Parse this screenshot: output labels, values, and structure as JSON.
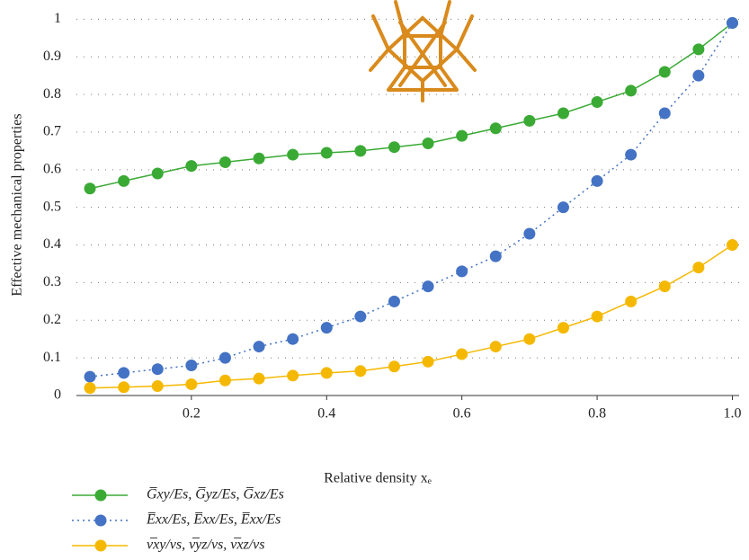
{
  "chart_data": {
    "type": "line",
    "x_label": "Relative density xₑ",
    "y_label": "Effective mechanical properties",
    "x": [
      0.05,
      0.1,
      0.15,
      0.2,
      0.25,
      0.3,
      0.35,
      0.4,
      0.45,
      0.5,
      0.55,
      0.6,
      0.65,
      0.7,
      0.75,
      0.8,
      0.85,
      0.9,
      0.95,
      1.0
    ],
    "series": [
      {
        "name": "G̅xy/Es, G̅yz/Es, G̅xz/Es",
        "color": "#3aaa35",
        "line_style": "solid",
        "values": [
          0.55,
          0.57,
          0.59,
          0.61,
          0.62,
          0.63,
          0.64,
          0.645,
          0.65,
          0.66,
          0.67,
          0.69,
          0.71,
          0.73,
          0.75,
          0.78,
          0.81,
          0.86,
          0.92,
          0.99
        ]
      },
      {
        "name": "E̅xx/Es, E̅xx/Es, E̅xx/Es",
        "color": "#4472c4",
        "line_style": "dotted",
        "values": [
          0.05,
          0.06,
          0.07,
          0.08,
          0.1,
          0.13,
          0.15,
          0.18,
          0.21,
          0.25,
          0.29,
          0.33,
          0.37,
          0.43,
          0.5,
          0.57,
          0.64,
          0.75,
          0.85,
          0.99
        ]
      },
      {
        "name": "ν̅xy/νs, ν̅yz/νs, ν̅xz/νs",
        "color": "#f5b800",
        "line_style": "solid",
        "values": [
          0.02,
          0.022,
          0.025,
          0.03,
          0.04,
          0.045,
          0.053,
          0.06,
          0.065,
          0.077,
          0.09,
          0.11,
          0.13,
          0.15,
          0.18,
          0.21,
          0.25,
          0.29,
          0.34,
          0.4
        ]
      }
    ],
    "xlim": [
      0.03,
      1.01
    ],
    "ylim": [
      0,
      1.02
    ],
    "xticks": [
      0.2,
      0.4,
      0.6,
      0.8,
      {
        "value": 1,
        "label": "1.0"
      }
    ],
    "yticks": [
      0,
      0.1,
      0.2,
      0.3,
      0.4,
      0.5,
      0.6,
      0.7,
      0.8,
      0.9,
      1
    ],
    "grid": true,
    "legend": "bottom-left"
  }
}
